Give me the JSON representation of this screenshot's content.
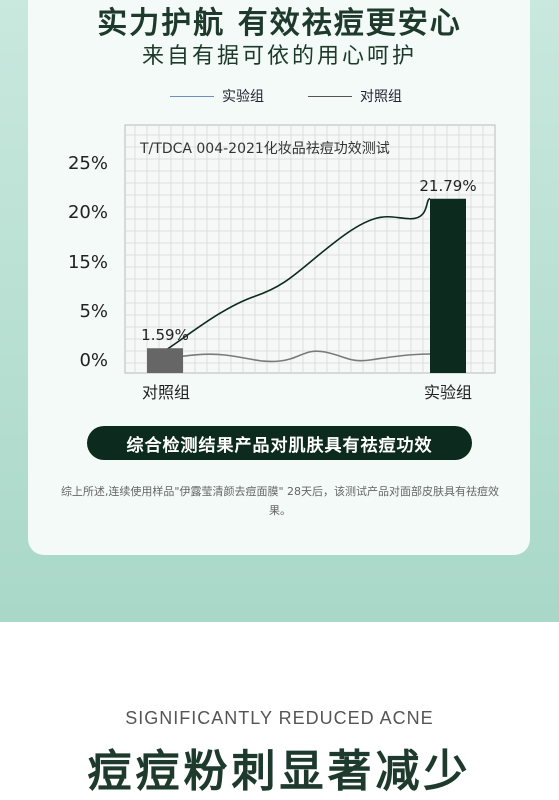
{
  "header": {
    "title": "实力护航 有效祛痘更安心",
    "subtitle": "来自有据可依的用心呵护"
  },
  "legend": {
    "experimental": "实验组",
    "control": "对照组"
  },
  "colors": {
    "experimental_line": "#6f8fbf",
    "control_line": "#555555",
    "bar_control": "#666666",
    "bar_experimental": "#0c2a1d",
    "curve_experimental": "#0c2a1d",
    "curve_control": "#7a7a7a"
  },
  "chart_data": {
    "type": "bar",
    "title": "T/TDCA 004-2021化妆品祛痘功效测试",
    "categories": [
      "对照组",
      "实验组"
    ],
    "values": [
      1.59,
      21.79
    ],
    "value_labels": [
      "1.59%",
      "21.79%"
    ],
    "ytick_labels": [
      "0%",
      "5%",
      "15%",
      "20%",
      "25%"
    ],
    "series": [
      {
        "name": "实验组",
        "values": [
          1.59,
          21.79
        ],
        "color": "#0c2a1d"
      },
      {
        "name": "对照组",
        "values": [
          1.59,
          1.5
        ],
        "color": "#555555"
      }
    ],
    "grid": true,
    "legend_position": "top"
  },
  "conclusion": "综合检测结果产品对肌肤具有祛痘功效",
  "note": "综上所述,连续使用样品\"伊露莹清颜去痘面膜\" 28天后，该测试产品对面部皮肤具有祛痘效果。",
  "section": {
    "english": "SIGNIFICANTLY REDUCED ACNE",
    "chinese": "痘痘粉刺显著减少"
  }
}
